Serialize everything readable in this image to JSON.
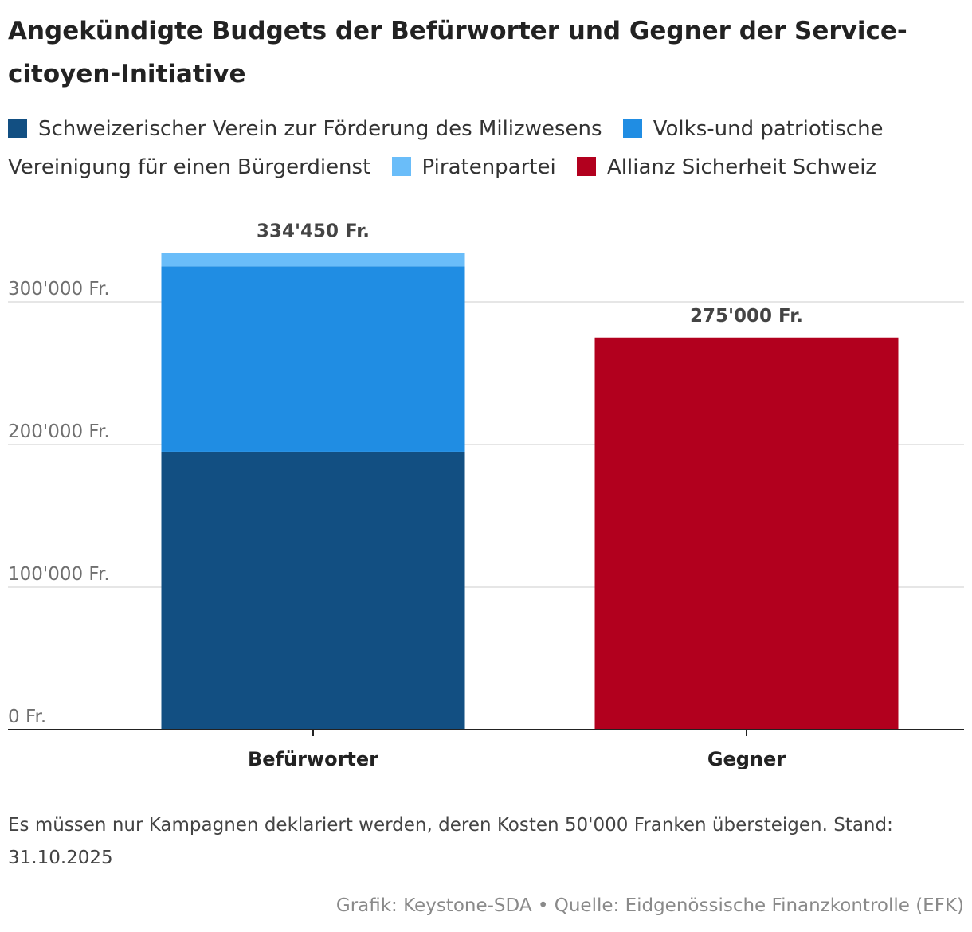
{
  "title": "Angekündigte Budgets der Befürworter und Gegner der Service-citoyen-Initiative",
  "legend": [
    {
      "label": "Schweizerischer Verein zur Förderung des Milizwesens",
      "color": "#124f82"
    },
    {
      "label": "Volks-und patriotische Vereinigung für einen Bürgerdienst",
      "color": "#208de3"
    },
    {
      "label": "Piratenpartei",
      "color": "#6abdf9"
    },
    {
      "label": "Allianz Sicherheit Schweiz",
      "color": "#b2001e"
    }
  ],
  "chart_data": {
    "type": "bar",
    "stacked": true,
    "categories": [
      "Befürworter",
      "Gegner"
    ],
    "series": [
      {
        "name": "Schweizerischer Verein zur Förderung des Milizwesens",
        "values": [
          195000,
          0
        ],
        "color": "#124f82"
      },
      {
        "name": "Volks-und patriotische Vereinigung für einen Bürgerdienst",
        "values": [
          130000,
          0
        ],
        "color": "#208de3"
      },
      {
        "name": "Piratenpartei",
        "values": [
          9450,
          0
        ],
        "color": "#6abdf9"
      },
      {
        "name": "Allianz Sicherheit Schweiz",
        "values": [
          0,
          275000
        ],
        "color": "#b2001e"
      }
    ],
    "totals": [
      334450,
      275000
    ],
    "total_labels": [
      "334'450 Fr.",
      "275'000 Fr."
    ],
    "yticks": [
      0,
      100000,
      200000,
      300000
    ],
    "ytick_labels": [
      "0 Fr.",
      "100'000 Fr.",
      "200'000 Fr.",
      "300'000 Fr."
    ],
    "ylim": [
      0,
      300000
    ],
    "grid": true,
    "legend_position": "top"
  },
  "note": "Es müssen nur Kampagnen deklariert werden, deren Kosten 50'000 Franken übersteigen. Stand: 31.10.2025",
  "credit": "Grafik: Keystone-SDA • Quelle: Eidgenössische Finanzkontrolle (EFK)"
}
